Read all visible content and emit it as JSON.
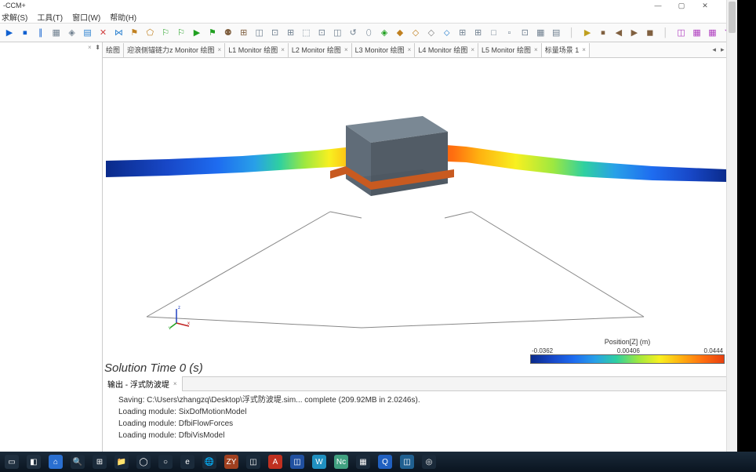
{
  "window": {
    "title": "-CCM+"
  },
  "menu": {
    "items": [
      "求解(S)",
      "工具(T)",
      "窗口(W)",
      "帮助(H)"
    ]
  },
  "toolbar": {
    "icons": [
      "▶",
      "⏹",
      "∥",
      "▦",
      "◈",
      "▤",
      "✕",
      "⋈",
      "⚑",
      "⬠",
      "⚐",
      "⚐",
      "▶",
      "⚑",
      "⚉",
      "⊞",
      "◫",
      "⊡",
      "⊞",
      "⬚",
      "⊡",
      "◫",
      "↺",
      "⬯",
      "◈",
      "◆",
      "◇",
      "◇",
      "⬦",
      "⊞",
      "⊞",
      "□",
      "▫",
      "⊡",
      "▦",
      "▤",
      "│",
      "▶",
      "⏹",
      "◀",
      "▶",
      "◼",
      "│",
      "◫",
      "▦",
      "▦",
      "◥"
    ],
    "colors": [
      "#1060d0",
      "#1060d0",
      "#1060d0",
      "#708090",
      "#708090",
      "#2a80d0",
      "#d04040",
      "#2a80d0",
      "#c08020",
      "#c08020",
      "#20a020",
      "#20a020",
      "#20a020",
      "#20a020",
      "#806040",
      "#806040",
      "#708090",
      "#708090",
      "#708090",
      "#708090",
      "#708090",
      "#708090",
      "#708090",
      "#708090",
      "#20a020",
      "#c08020",
      "#c08020",
      "#808080",
      "#2a80d0",
      "#708090",
      "#708090",
      "#708090",
      "#708090",
      "#708090",
      "#708090",
      "#708090",
      "#c0c0c0",
      "#c0a020",
      "#806040",
      "#806040",
      "#806040",
      "#806040",
      "#c0c0c0",
      "#b040c0",
      "#b040c0",
      "#b040c0",
      "#b040c0"
    ]
  },
  "tabs": {
    "items": [
      {
        "label": "绘图",
        "closable": false
      },
      {
        "label": "迎浪侧锚链力z Monitor 绘图",
        "closable": true
      },
      {
        "label": "L1 Monitor 绘图",
        "closable": true
      },
      {
        "label": "L2 Monitor 绘图",
        "closable": true
      },
      {
        "label": "L3 Monitor 绘图",
        "closable": true
      },
      {
        "label": "L4 Monitor 绘图",
        "closable": true
      },
      {
        "label": "L5 Monitor 绘图",
        "closable": true
      },
      {
        "label": "标量场景 1",
        "closable": true,
        "active": true
      }
    ]
  },
  "scene": {
    "solution_time": "Solution Time 0 (s)",
    "legend": {
      "title": "Position[Z] (m)",
      "min": "-0.0362",
      "mid": "0.00406",
      "max": "0.0444"
    },
    "block_colors": {
      "top": "#7a8894",
      "front": "#606c78",
      "side": "#525c66",
      "under": "#c85a20"
    },
    "triad": {
      "x": "x",
      "y": "y",
      "z": "z",
      "xcol": "#c02020",
      "ycol": "#20a020",
      "zcol": "#2040c0"
    }
  },
  "output": {
    "tab": "输出 - 浮式防波堤",
    "lines": [
      "Saving: C:\\Users\\zhangzq\\Desktop\\浮式防波堤.sim... complete (209.92MB in 2.0246s).",
      "Loading module: SixDofMotionModel",
      "Loading module: DfbiFlowForces",
      "Loading module: DfbiVisModel"
    ]
  },
  "taskbar": {
    "icons": [
      {
        "bg": "#203040",
        "glyph": "▭"
      },
      {
        "bg": "#203040",
        "glyph": "◧"
      },
      {
        "bg": "#2a6fd0",
        "glyph": "⌂"
      },
      {
        "bg": "#1a2a3a",
        "glyph": "🔍"
      },
      {
        "bg": "#1a2a3a",
        "glyph": "⊞"
      },
      {
        "bg": "#1a2a3a",
        "glyph": "📁"
      },
      {
        "bg": "#1a2a3a",
        "glyph": "◯"
      },
      {
        "bg": "#1a2a3a",
        "glyph": "○"
      },
      {
        "bg": "#1a2a3a",
        "glyph": "e"
      },
      {
        "bg": "#1a2a3a",
        "glyph": "🌐"
      },
      {
        "bg": "#a04020",
        "glyph": "ZY"
      },
      {
        "bg": "#1a2a3a",
        "glyph": "◫"
      },
      {
        "bg": "#c03020",
        "glyph": "A"
      },
      {
        "bg": "#2050a0",
        "glyph": "◫"
      },
      {
        "bg": "#2090c0",
        "glyph": "W"
      },
      {
        "bg": "#40a080",
        "glyph": "Nc"
      },
      {
        "bg": "#1a2a3a",
        "glyph": "▦"
      },
      {
        "bg": "#2060c0",
        "glyph": "Q"
      },
      {
        "bg": "#206090",
        "glyph": "◫"
      },
      {
        "bg": "#1a2a3a",
        "glyph": "◎"
      }
    ]
  }
}
